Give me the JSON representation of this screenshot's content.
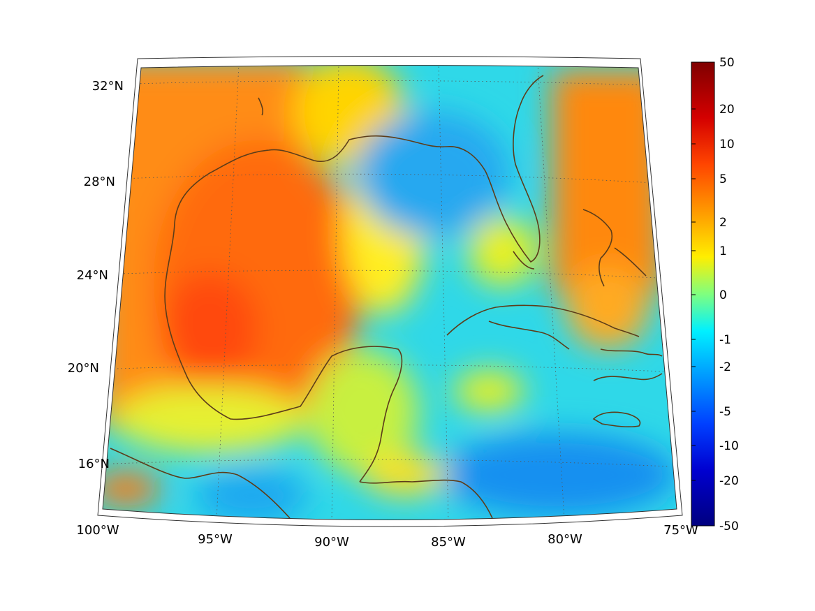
{
  "map": {
    "projection": "conic",
    "colormap": "jet",
    "longitude_labels": [
      "100°W",
      "95°W",
      "90°W",
      "85°W",
      "80°W",
      "75°W"
    ],
    "latitude_labels": [
      "16°N",
      "20°N",
      "24°N",
      "28°N",
      "32°N"
    ],
    "coastline_color": "#5c3d1a",
    "grid": "dotted",
    "colorbar": {
      "placement": "right",
      "tick_labels": [
        "50",
        "20",
        "10",
        "5",
        "2",
        "1",
        "0",
        "-1",
        "-2",
        "-5",
        "-10",
        "-20",
        "-50"
      ]
    }
  }
}
